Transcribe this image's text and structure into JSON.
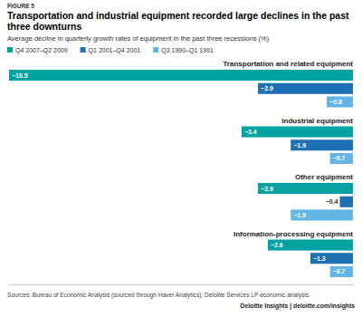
{
  "chart_data": {
    "type": "bar",
    "orientation": "horizontal",
    "title": "Transportation and industrial equipment recorded large declines in the past three downturns",
    "subtitle": "Average decline in quarterly growth rates of equipment in the past three recessions (%)",
    "annotations": [
      "FIGURE 5",
      "Sources: Bureau of Economic Analysis (sourced through Haver Analytics); Deloitte Services LP economic analysis.",
      "Deloitte Insights | deloitte.com/insights"
    ],
    "categories": [
      "Transportation and related equipment",
      "Industrial equipment",
      "Other equipment",
      "Information-processing equipment"
    ],
    "series": [
      {
        "name": "Q4 2007–Q2 2009",
        "color": "#00a3a1",
        "values": [
          -10.5,
          -3.4,
          -2.9,
          -2.6
        ],
        "value_labels": [
          "−10.5",
          "−3.4",
          "−2.9",
          "−2.6"
        ]
      },
      {
        "name": "Q1 2001–Q4 2001",
        "color": "#1f6fb5",
        "values": [
          -2.9,
          -1.9,
          -0.4,
          -1.3
        ],
        "value_labels": [
          "−2.9",
          "−1.9",
          "−0.4",
          "−1.3"
        ]
      },
      {
        "name": "Q3 1990–Q1 1991",
        "color": "#62b5e5",
        "values": [
          -0.8,
          -0.7,
          -1.9,
          -0.7
        ],
        "value_labels": [
          "−0.8",
          "−0.7",
          "−1.9",
          "−0.7"
        ]
      }
    ],
    "xlim": [
      -10.5,
      0
    ],
    "data_labels": true,
    "legend": "top-left",
    "tick_labels": false
  }
}
